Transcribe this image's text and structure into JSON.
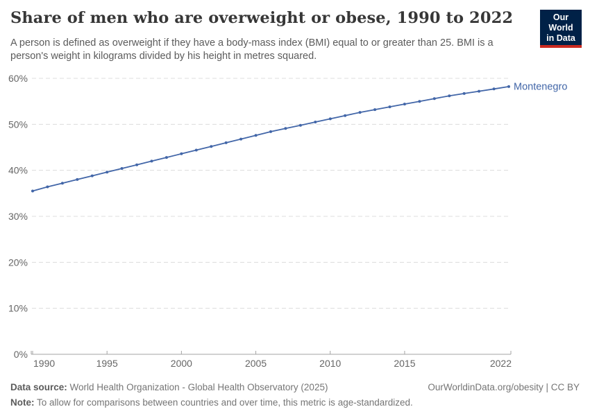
{
  "header": {
    "title": "Share of men who are overweight or obese, 1990 to 2022",
    "subtitle": "A person is defined as overweight if they have a body-mass index (BMI) equal to or greater than 25. BMI is a person's weight in kilograms divided by his height in metres squared.",
    "logo": {
      "line1": "Our World",
      "line2": "in Data",
      "bg_color": "#002147",
      "stripe_color": "#cb2a20"
    }
  },
  "chart_data": {
    "type": "line",
    "title": "Share of men who are overweight or obese, 1990 to 2022",
    "x": [
      1990,
      1991,
      1992,
      1993,
      1994,
      1995,
      1996,
      1997,
      1998,
      1999,
      2000,
      2001,
      2002,
      2003,
      2004,
      2005,
      2006,
      2007,
      2008,
      2009,
      2010,
      2011,
      2012,
      2013,
      2014,
      2015,
      2016,
      2017,
      2018,
      2019,
      2020,
      2021,
      2022
    ],
    "series": [
      {
        "name": "Montenegro",
        "color": "#4266a8",
        "values": [
          35.5,
          36.4,
          37.2,
          38.0,
          38.8,
          39.6,
          40.4,
          41.2,
          42.0,
          42.8,
          43.6,
          44.4,
          45.2,
          46.0,
          46.8,
          47.6,
          48.4,
          49.1,
          49.8,
          50.5,
          51.2,
          51.9,
          52.6,
          53.2,
          53.8,
          54.4,
          55.0,
          55.6,
          56.2,
          56.7,
          57.2,
          57.7,
          58.2
        ]
      }
    ],
    "x_ticks": [
      "1990",
      "1995",
      "2000",
      "2005",
      "2010",
      "2015",
      "2022"
    ],
    "y_ticks": [
      0,
      10,
      20,
      30,
      40,
      50,
      60
    ],
    "y_suffix": "%",
    "ylim": [
      0,
      60
    ],
    "xlim": [
      1990,
      2022
    ],
    "grid": "horizontal-dashed",
    "legend_position": "end-of-line",
    "colors": {
      "gridline": "#dcdcdc",
      "axis": "#a3a3a3",
      "tick_label": "#666666"
    }
  },
  "footer": {
    "data_source_label": "Data source:",
    "data_source_text": " World Health Organization - Global Health Observatory (2025)",
    "citation": "OurWorldinData.org/obesity | CC BY",
    "note_label": "Note:",
    "note_text": " To allow for comparisons between countries and over time, this metric is age-standardized."
  }
}
